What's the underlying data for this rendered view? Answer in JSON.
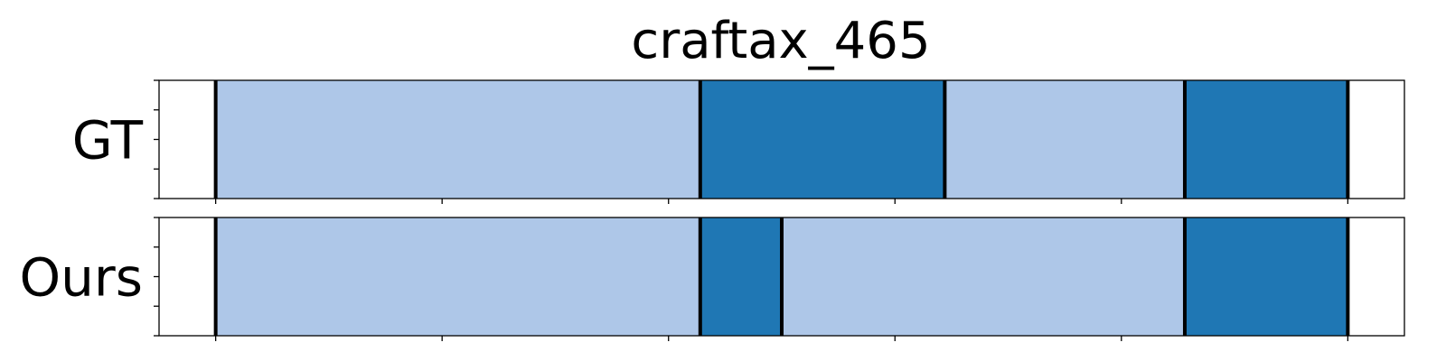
{
  "chart_data": {
    "type": "segment-timeline",
    "title": "craftax_465",
    "xlim": [
      -0.25,
      5.25
    ],
    "xticks": [
      0,
      1,
      2,
      3,
      4,
      5
    ],
    "colors": {
      "light": "#aec7e8",
      "dark": "#1f77b4",
      "boundary": "#000000"
    },
    "rows": [
      {
        "label": "GT",
        "segments": [
          {
            "start": 0.0,
            "end": 2.14,
            "color": "light"
          },
          {
            "start": 2.14,
            "end": 3.22,
            "color": "dark"
          },
          {
            "start": 3.22,
            "end": 4.28,
            "color": "light"
          },
          {
            "start": 4.28,
            "end": 5.0,
            "color": "dark"
          }
        ]
      },
      {
        "label": "Ours",
        "segments": [
          {
            "start": 0.0,
            "end": 2.14,
            "color": "light"
          },
          {
            "start": 2.14,
            "end": 2.5,
            "color": "dark"
          },
          {
            "start": 2.5,
            "end": 4.28,
            "color": "light"
          },
          {
            "start": 4.28,
            "end": 5.0,
            "color": "dark"
          }
        ]
      }
    ]
  }
}
